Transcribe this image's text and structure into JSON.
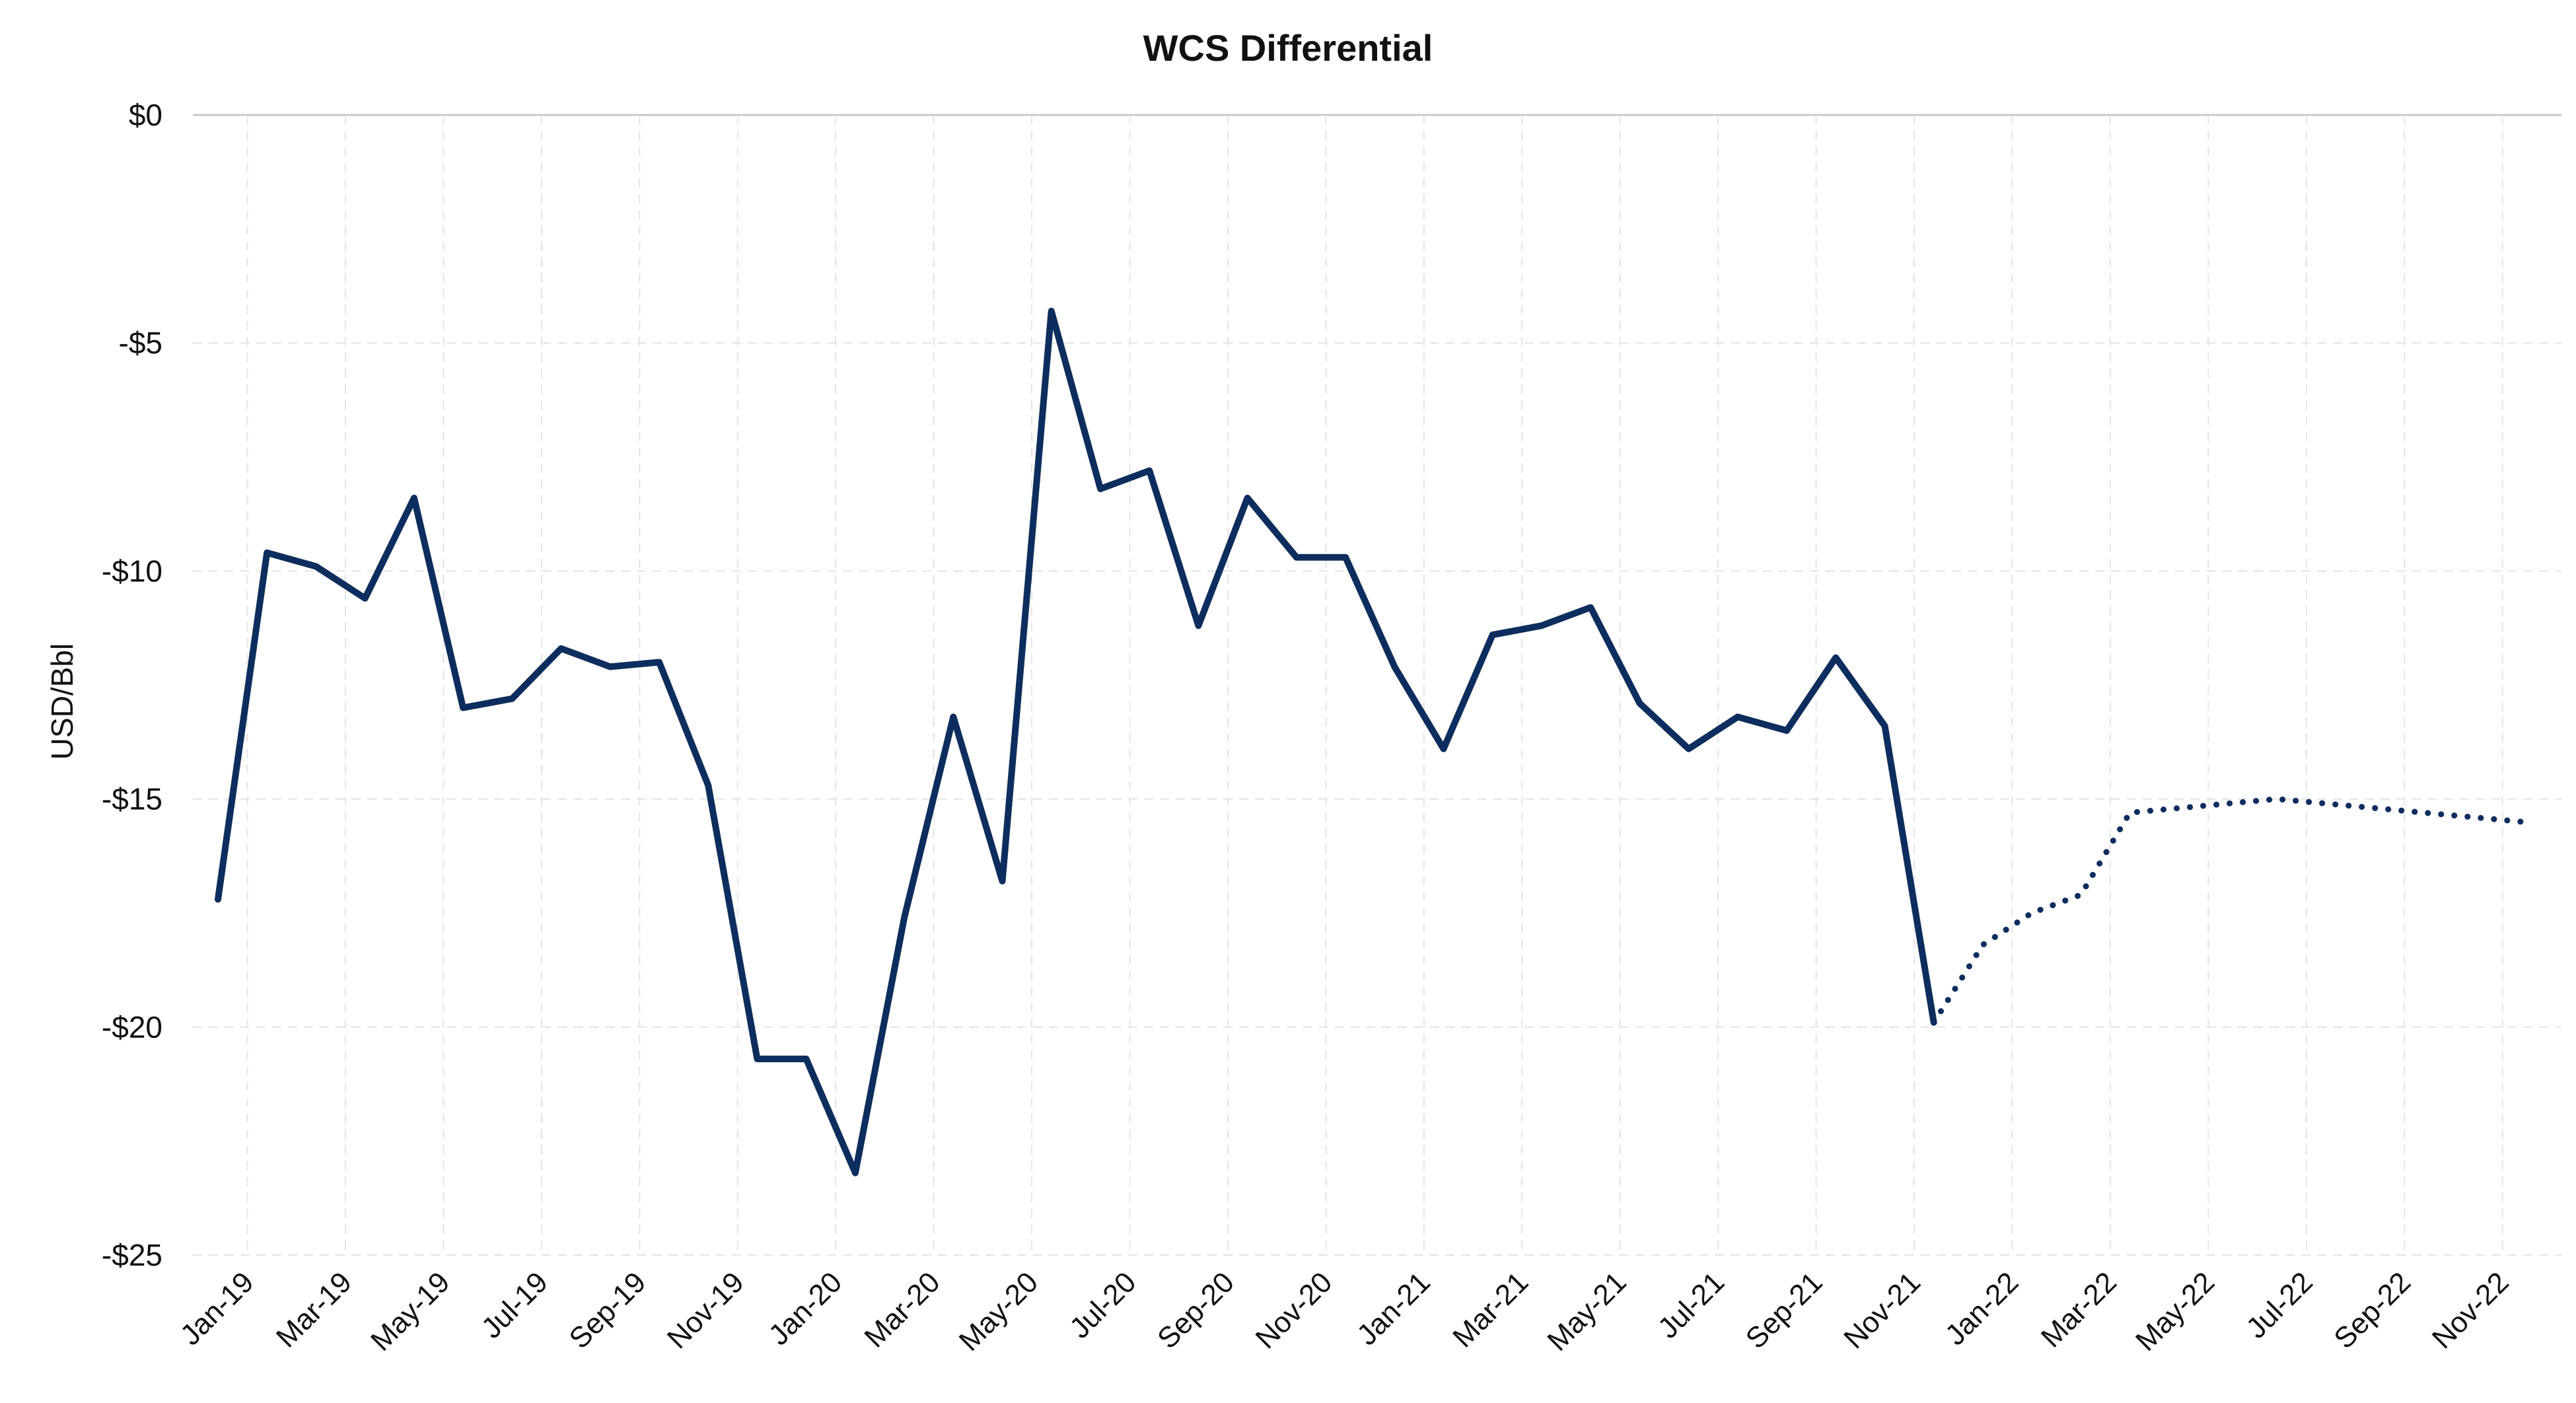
{
  "chart_data": {
    "type": "line",
    "title": "WCS Differential",
    "xlabel": "",
    "ylabel": "USD/Bbl",
    "ylim": [
      -25,
      0
    ],
    "y_ticks": [
      {
        "value": 0,
        "label": "$0"
      },
      {
        "value": -5,
        "label": "-$5"
      },
      {
        "value": -10,
        "label": "-$10"
      },
      {
        "value": -15,
        "label": "-$15"
      },
      {
        "value": -20,
        "label": "-$20"
      },
      {
        "value": -25,
        "label": "-$25"
      }
    ],
    "x_tick_labels": [
      "Jan-19",
      "Mar-19",
      "May-19",
      "Jul-19",
      "Sep-19",
      "Nov-19",
      "Jan-20",
      "Mar-20",
      "May-20",
      "Jul-20",
      "Sep-20",
      "Nov-20",
      "Jan-21",
      "Mar-21",
      "May-21",
      "Jul-21",
      "Sep-21",
      "Nov-21",
      "Jan-22",
      "Mar-22",
      "May-22",
      "Jul-22",
      "Sep-22",
      "Nov-22"
    ],
    "grid": true,
    "line_color": "#0d2d5e",
    "series": [
      {
        "style": "solid",
        "x": [
          "Jan-19",
          "Feb-19",
          "Mar-19",
          "Apr-19",
          "May-19",
          "Jun-19",
          "Jul-19",
          "Aug-19",
          "Sep-19",
          "Oct-19",
          "Nov-19",
          "Dec-19",
          "Jan-20",
          "Feb-20",
          "Mar-20",
          "Apr-20",
          "May-20",
          "Jun-20",
          "Jul-20",
          "Aug-20",
          "Sep-20",
          "Oct-20",
          "Nov-20",
          "Dec-20",
          "Jan-21",
          "Feb-21",
          "Mar-21",
          "Apr-21",
          "May-21",
          "Jun-21",
          "Jul-21",
          "Aug-21",
          "Sep-21",
          "Oct-21",
          "Nov-21",
          "Dec-21"
        ],
        "values": [
          -17.2,
          -9.6,
          -9.9,
          -10.6,
          -8.4,
          -13.0,
          -12.8,
          -11.7,
          -12.1,
          -12.0,
          -14.7,
          -20.7,
          -20.7,
          -23.2,
          -17.6,
          -13.2,
          -16.8,
          -4.3,
          -8.2,
          -7.8,
          -11.2,
          -8.4,
          -9.7,
          -9.7,
          -12.1,
          -13.9,
          -11.4,
          -11.2,
          -10.8,
          -12.9,
          -13.9,
          -13.2,
          -13.5,
          -11.9,
          -13.4,
          -19.9
        ]
      },
      {
        "style": "dotted",
        "x": [
          "Dec-21",
          "Jan-22",
          "Feb-22",
          "Mar-22",
          "Apr-22",
          "May-22",
          "Jun-22",
          "Jul-22",
          "Aug-22",
          "Sep-22",
          "Oct-22",
          "Nov-22",
          "Dec-22"
        ],
        "values": [
          -19.9,
          -18.2,
          -17.5,
          -17.1,
          -15.3,
          -15.2,
          -15.1,
          -15.0,
          -15.1,
          -15.2,
          -15.3,
          -15.4,
          -15.5
        ]
      }
    ]
  }
}
